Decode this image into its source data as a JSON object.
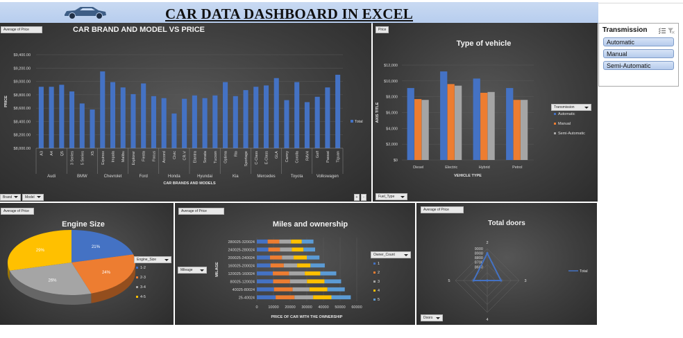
{
  "header": {
    "title": "CAR DATA DASHBOARD IN EXCEL"
  },
  "slicer": {
    "title": "Transmission",
    "items": [
      "Automatic",
      "Manual",
      "Semi-Automatic"
    ]
  },
  "chart_data": [
    {
      "id": "brand",
      "type": "bar",
      "title": "CAR BRAND AND MODEL VS PRICE",
      "value_field": "Average of Price",
      "xlabel": "CAR BRANDS AND MODELS",
      "ylabel": "PRICE",
      "ylim": [
        8000,
        9400
      ],
      "yticks": [
        "$8,000.00",
        "$8,200.00",
        "$8,400.00",
        "$8,600.00",
        "$8,800.00",
        "$9,000.00",
        "$9,200.00",
        "$9,400.00"
      ],
      "legend": [
        "Total"
      ],
      "filters": [
        "Brand",
        "Model"
      ],
      "groups": [
        {
          "name": "Audi",
          "models": [
            "A3",
            "A4",
            "Q5"
          ],
          "values": [
            8920,
            8920,
            8950
          ]
        },
        {
          "name": "BMW",
          "models": [
            "3 Series",
            "5 Series",
            "X5"
          ],
          "values": [
            8850,
            8670,
            8580
          ]
        },
        {
          "name": "Chevrolet",
          "models": [
            "Equinox",
            "Impala",
            "Malibu"
          ],
          "values": [
            9150,
            8990,
            8910
          ]
        },
        {
          "name": "Ford",
          "models": [
            "Explorer",
            "Fiesta",
            "Focus"
          ],
          "values": [
            8810,
            8970,
            8780
          ]
        },
        {
          "name": "Honda",
          "models": [
            "Accord",
            "Civic",
            "CR-V"
          ],
          "values": [
            8750,
            8520,
            8740
          ]
        },
        {
          "name": "Hyundai",
          "models": [
            "Elantra",
            "Sonata",
            "Tucson"
          ],
          "values": [
            8790,
            8750,
            8790
          ]
        },
        {
          "name": "Kia",
          "models": [
            "Optima",
            "Rio",
            "Sportage"
          ],
          "values": [
            8990,
            8780,
            8870
          ]
        },
        {
          "name": "Mercedes",
          "models": [
            "C-Class",
            "E-Class",
            "GLA"
          ],
          "values": [
            8920,
            8940,
            9050
          ]
        },
        {
          "name": "Toyota",
          "models": [
            "Camry",
            "Corolla",
            "RAV4"
          ],
          "values": [
            8720,
            8990,
            8690
          ]
        },
        {
          "name": "Volkswagen",
          "models": [
            "Golf",
            "Passat",
            "Tiguan"
          ],
          "values": [
            8770,
            8910,
            9100
          ]
        }
      ]
    },
    {
      "id": "vehicle",
      "type": "bar",
      "title": "Type of vehicle",
      "value_field": "Price",
      "xlabel": "VEHICLE TYPE",
      "ylabel": "AXIS TITLE",
      "ylim": [
        0,
        12000
      ],
      "yticks": [
        "$0",
        "$2,000",
        "$4,000",
        "$6,000",
        "$8,000",
        "$10,000",
        "$12,000"
      ],
      "categories": [
        "Diesel",
        "Electric",
        "Hybrid",
        "Petrol"
      ],
      "legend_title": "Transmission",
      "series": [
        {
          "name": "Automatic",
          "color": "#4472c4",
          "values": [
            9100,
            11200,
            10300,
            9100
          ]
        },
        {
          "name": "Manual",
          "color": "#ed7d31",
          "values": [
            7700,
            9600,
            8500,
            7600
          ]
        },
        {
          "name": "Semi-Automatic",
          "color": "#a5a5a5",
          "values": [
            7600,
            9400,
            8600,
            7600
          ]
        }
      ],
      "filter": "Fuel_Type"
    },
    {
      "id": "engine",
      "type": "pie",
      "title": "Engine Size",
      "value_field": "Average of Price",
      "legend_title": "Engine_Size",
      "slices": [
        {
          "label": "1-2",
          "value": 21,
          "color": "#4472c4",
          "text": "21%"
        },
        {
          "label": "2-3",
          "value": 24,
          "color": "#ed7d31",
          "text": "24%"
        },
        {
          "label": "3-4",
          "value": 26,
          "color": "#a5a5a5",
          "text": "26%"
        },
        {
          "label": "4-5",
          "value": 29,
          "color": "#ffc000",
          "text": "29%"
        }
      ]
    },
    {
      "id": "miles",
      "type": "bar",
      "title": "Miles and ownership",
      "value_field": "Average of Price",
      "xlabel": "PRICE OF CAR WITH THE OWNERSHIP",
      "ylabel": "MILAGE",
      "xlim": [
        0,
        60000
      ],
      "xticks": [
        "0",
        "10000",
        "20000",
        "30000",
        "40000",
        "50000",
        "60000"
      ],
      "categories": [
        "25-40024",
        "40025-80024",
        "80025-120024",
        "120025-160024",
        "160025-200024",
        "200025-240024",
        "240025-280024",
        "280025-320024"
      ],
      "legend_title": "Owner_Count",
      "series": [
        {
          "name": "1",
          "color": "#4472c4",
          "values": [
            11300,
            10300,
            9800,
            9600,
            8200,
            7900,
            6900,
            6500
          ]
        },
        {
          "name": "2",
          "color": "#ed7d31",
          "values": [
            11300,
            11200,
            10100,
            9700,
            8000,
            7200,
            7000,
            7000
          ]
        },
        {
          "name": "3",
          "color": "#a5a5a5",
          "values": [
            11200,
            10100,
            10200,
            9500,
            8000,
            7000,
            7100,
            7000
          ]
        },
        {
          "name": "4",
          "color": "#ffc000",
          "values": [
            11000,
            10800,
            10500,
            9300,
            8000,
            7900,
            7000,
            6500
          ]
        },
        {
          "name": "5",
          "color": "#5b9bd5",
          "values": [
            11600,
            10400,
            10000,
            9600,
            8600,
            7600,
            7000,
            7000
          ]
        }
      ],
      "filter": "Mileage"
    },
    {
      "id": "doors",
      "type": "radar",
      "title": "Total doors",
      "value_field": "Average of Price",
      "categories": [
        "2",
        "3",
        "4",
        "5"
      ],
      "values": [
        8900,
        8600,
        8300,
        8600
      ],
      "rlim": [
        8300,
        9000
      ],
      "rticks": [
        "8600",
        "8700",
        "8800",
        "8900",
        "9000"
      ],
      "legend": [
        "Total"
      ],
      "filter": "Doors"
    }
  ]
}
